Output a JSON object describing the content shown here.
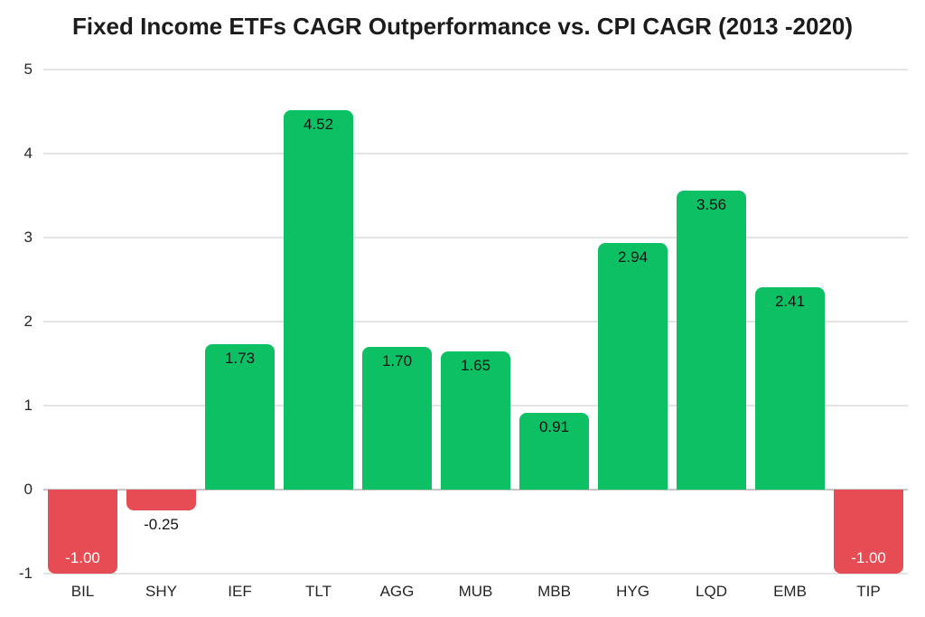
{
  "chart_data": {
    "type": "bar",
    "title": "Fixed Income ETFs CAGR Outperformance vs. CPI CAGR (2013 -2020)",
    "categories": [
      "BIL",
      "SHY",
      "IEF",
      "TLT",
      "AGG",
      "MUB",
      "MBB",
      "HYG",
      "LQD",
      "EMB",
      "TIP"
    ],
    "values": [
      -1.0,
      -0.25,
      1.73,
      4.52,
      1.7,
      1.65,
      0.91,
      2.94,
      3.56,
      2.41,
      -1.0
    ],
    "value_labels": [
      "-1.00",
      "-0.25",
      "1.73",
      "4.52",
      "1.70",
      "1.65",
      "0.91",
      "2.94",
      "3.56",
      "2.41",
      "-1.00"
    ],
    "xlabel": "",
    "ylabel": "",
    "ylim": [
      -1,
      5
    ],
    "yticks": [
      5,
      4,
      3,
      2,
      1,
      0,
      -1
    ],
    "grid": true,
    "legend": false,
    "colors": {
      "positive_bar": "#0cc063",
      "negative_bar": "#e64c54",
      "label_inside_positive": "#141414",
      "label_inside_negative": "#ffffff",
      "label_outside": "#141414",
      "gridline": "#e4e4e4",
      "zero_line": "#c6c6c6",
      "axis_text": "#262626",
      "title_text": "#1c1c1c"
    }
  }
}
